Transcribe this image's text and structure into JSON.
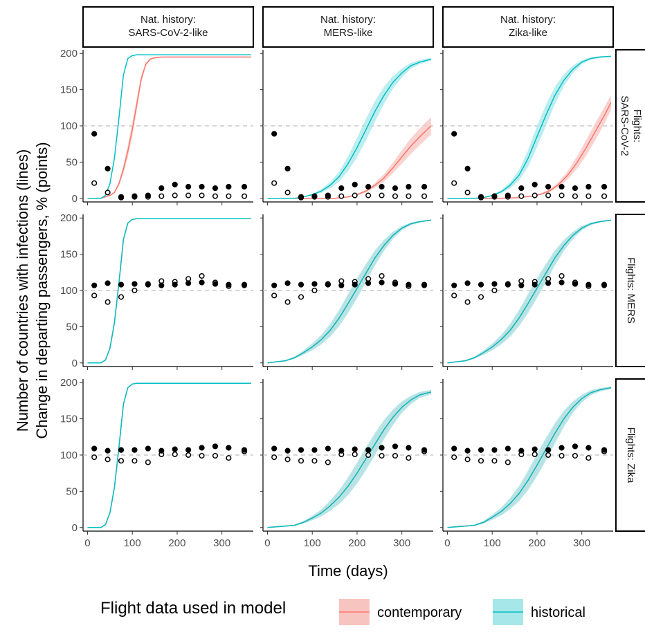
{
  "chart_data": {
    "type": "line",
    "layout": "faceted grid 3x3 (columns: natural history, rows: flight data scenario)",
    "col_strips": [
      "Nat. history:\nSARS-CoV-2-like",
      "Nat. history:\nMERS-like",
      "Nat. history:\nZika-like"
    ],
    "row_strips": [
      "Flights:\nSARS-CoV-2",
      "Flights: MERS",
      "Flights: Zika"
    ],
    "xlabel": "Time (days)",
    "ylabel": [
      "Number of countries with infections (lines)",
      "Change in departing passengers, % (points)"
    ],
    "xticks": [
      0,
      100,
      200,
      300
    ],
    "yticks": [
      0,
      50,
      100,
      150,
      200
    ],
    "xlim": [
      -10,
      370
    ],
    "ylim": [
      -5,
      205
    ],
    "reference_line_y": 100,
    "legend": {
      "title": "Flight data used in model",
      "position": "bottom",
      "entries": [
        {
          "label": "contemporary",
          "line_color": "#F8766D",
          "fill_color": "#F8C4C0"
        },
        {
          "label": "historical",
          "line_color": "#00BFC4",
          "fill_color": "#A6E7E9"
        }
      ]
    },
    "line_series": [
      {
        "flights": "SARS-CoV-2",
        "curves": [
          {
            "nat_history": "SARS-CoV-2-like",
            "contemporary": {
              "x": [
                0,
                30,
                50,
                60,
                70,
                80,
                90,
                100,
                110,
                120,
                130,
                140,
                150,
                165,
                200,
                365
              ],
              "y": [
                0,
                0,
                4,
                8,
                20,
                40,
                65,
                95,
                130,
                165,
                185,
                192,
                194,
                195,
                195,
                195
              ],
              "band": 10
            },
            "historical": {
              "x": [
                0,
                30,
                40,
                50,
                60,
                70,
                80,
                90,
                100,
                110,
                365
              ],
              "y": [
                0,
                0,
                4,
                20,
                55,
                110,
                170,
                193,
                197,
                198,
                198
              ],
              "band": 3
            }
          },
          {
            "nat_history": "MERS-like",
            "contemporary": {
              "x": [
                0,
                100,
                150,
                180,
                200,
                220,
                240,
                260,
                280,
                300,
                320,
                340,
                365
              ],
              "y": [
                0,
                0,
                0,
                2,
                5,
                10,
                18,
                28,
                42,
                57,
                72,
                85,
                100
              ],
              "band": 12
            },
            "historical": {
              "x": [
                0,
                60,
                80,
                100,
                120,
                140,
                160,
                180,
                200,
                220,
                240,
                260,
                280,
                300,
                320,
                340,
                365
              ],
              "y": [
                0,
                0,
                2,
                5,
                10,
                18,
                30,
                48,
                70,
                95,
                120,
                142,
                160,
                173,
                183,
                188,
                192
              ],
              "band": 15
            }
          },
          {
            "nat_history": "Zika-like",
            "contemporary": {
              "x": [
                0,
                120,
                160,
                190,
                210,
                230,
                250,
                270,
                290,
                310,
                330,
                350,
                365
              ],
              "y": [
                0,
                0,
                1,
                3,
                6,
                11,
                20,
                33,
                50,
                70,
                92,
                114,
                132
              ],
              "band": 12
            },
            "historical": {
              "x": [
                0,
                60,
                80,
                100,
                120,
                140,
                160,
                180,
                200,
                220,
                240,
                260,
                280,
                300,
                320,
                340,
                365
              ],
              "y": [
                0,
                0,
                1,
                4,
                9,
                18,
                32,
                55,
                85,
                115,
                142,
                163,
                178,
                188,
                193,
                195,
                196
              ],
              "band": 15
            }
          }
        ]
      },
      {
        "flights": "MERS",
        "curves": [
          {
            "nat_history": "SARS-CoV-2-like",
            "contemporary": {
              "x": [
                0,
                30,
                40,
                50,
                60,
                70,
                80,
                90,
                100,
                110,
                365
              ],
              "y": [
                0,
                0,
                4,
                20,
                55,
                110,
                170,
                193,
                198,
                199,
                199
              ],
              "band": 3
            },
            "historical": {
              "x": [
                0,
                30,
                40,
                50,
                60,
                70,
                80,
                90,
                100,
                110,
                365
              ],
              "y": [
                0,
                0,
                4,
                20,
                55,
                110,
                170,
                193,
                198,
                199,
                199
              ],
              "band": 3
            }
          },
          {
            "nat_history": "MERS-like",
            "contemporary": {
              "x": [
                0,
                40,
                60,
                80,
                100,
                120,
                140,
                160,
                180,
                200,
                220,
                240,
                260,
                280,
                300,
                320,
                340,
                365
              ],
              "y": [
                0,
                3,
                7,
                14,
                22,
                32,
                45,
                62,
                82,
                103,
                124,
                145,
                162,
                176,
                186,
                192,
                195,
                197
              ],
              "band": 12
            },
            "historical": {
              "x": [
                0,
                40,
                60,
                80,
                100,
                120,
                140,
                160,
                180,
                200,
                220,
                240,
                260,
                280,
                300,
                320,
                340,
                365
              ],
              "y": [
                0,
                3,
                7,
                14,
                22,
                32,
                45,
                62,
                82,
                103,
                124,
                145,
                162,
                176,
                186,
                192,
                195,
                197
              ],
              "band": 14
            }
          },
          {
            "nat_history": "Zika-like",
            "contemporary": {
              "x": [
                0,
                40,
                60,
                80,
                100,
                120,
                140,
                160,
                180,
                200,
                220,
                240,
                260,
                280,
                300,
                320,
                340,
                365
              ],
              "y": [
                0,
                3,
                7,
                14,
                22,
                32,
                45,
                62,
                82,
                103,
                124,
                145,
                162,
                176,
                186,
                192,
                195,
                197
              ],
              "band": 12
            },
            "historical": {
              "x": [
                0,
                40,
                60,
                80,
                100,
                120,
                140,
                160,
                180,
                200,
                220,
                240,
                260,
                280,
                300,
                320,
                340,
                365
              ],
              "y": [
                0,
                3,
                7,
                14,
                22,
                32,
                45,
                62,
                82,
                103,
                124,
                145,
                162,
                176,
                186,
                192,
                195,
                197
              ],
              "band": 14
            }
          }
        ]
      },
      {
        "flights": "Zika",
        "curves": [
          {
            "nat_history": "SARS-CoV-2-like",
            "contemporary": {
              "x": [
                0,
                30,
                40,
                50,
                60,
                70,
                80,
                90,
                100,
                110,
                365
              ],
              "y": [
                0,
                0,
                4,
                20,
                55,
                110,
                170,
                193,
                198,
                199,
                199
              ],
              "band": 3
            },
            "historical": {
              "x": [
                0,
                30,
                40,
                50,
                60,
                70,
                80,
                90,
                100,
                110,
                365
              ],
              "y": [
                0,
                0,
                4,
                20,
                55,
                110,
                170,
                193,
                198,
                199,
                199
              ],
              "band": 3
            }
          },
          {
            "nat_history": "MERS-like",
            "contemporary": {
              "x": [
                0,
                60,
                80,
                100,
                120,
                140,
                160,
                180,
                200,
                220,
                240,
                260,
                280,
                300,
                320,
                340,
                365
              ],
              "y": [
                0,
                3,
                7,
                13,
                20,
                30,
                42,
                57,
                75,
                95,
                115,
                135,
                152,
                166,
                176,
                183,
                187
              ],
              "band": 14
            },
            "historical": {
              "x": [
                0,
                60,
                80,
                100,
                120,
                140,
                160,
                180,
                200,
                220,
                240,
                260,
                280,
                300,
                320,
                340,
                365
              ],
              "y": [
                0,
                3,
                7,
                13,
                20,
                30,
                42,
                57,
                75,
                95,
                115,
                135,
                152,
                166,
                176,
                183,
                187
              ],
              "band": 16
            }
          },
          {
            "nat_history": "Zika-like",
            "contemporary": {
              "x": [
                0,
                60,
                80,
                100,
                120,
                140,
                160,
                180,
                200,
                220,
                240,
                260,
                280,
                300,
                320,
                340,
                365
              ],
              "y": [
                0,
                3,
                7,
                14,
                22,
                33,
                47,
                65,
                86,
                108,
                130,
                150,
                166,
                178,
                186,
                190,
                193
              ],
              "band": 14
            },
            "historical": {
              "x": [
                0,
                60,
                80,
                100,
                120,
                140,
                160,
                180,
                200,
                220,
                240,
                260,
                280,
                300,
                320,
                340,
                365
              ],
              "y": [
                0,
                3,
                7,
                14,
                22,
                33,
                47,
                65,
                86,
                108,
                130,
                150,
                166,
                178,
                186,
                190,
                193
              ],
              "band": 16
            }
          }
        ]
      }
    ],
    "point_series": {
      "x": [
        15,
        45,
        75,
        105,
        135,
        165,
        195,
        225,
        255,
        285,
        315,
        350
      ],
      "rows": [
        {
          "flights": "SARS-CoV-2",
          "contemporary_filled": [
            89,
            41,
            2,
            3,
            4,
            14,
            19,
            16,
            16,
            14,
            16,
            16
          ],
          "historical_open": [
            21,
            8,
            1,
            2,
            2,
            3,
            4,
            4,
            4,
            3,
            3,
            3
          ]
        },
        {
          "flights": "MERS",
          "contemporary_filled": [
            107,
            110,
            108,
            109,
            108,
            107,
            108,
            110,
            111,
            109,
            108,
            108
          ],
          "historical_open": [
            93,
            84,
            91,
            100,
            109,
            113,
            112,
            116,
            120,
            111,
            106,
            107
          ]
        },
        {
          "flights": "Zika",
          "contemporary_filled": [
            109,
            106,
            107,
            107,
            109,
            106,
            108,
            107,
            110,
            112,
            110,
            107
          ],
          "historical_open": [
            97,
            94,
            92,
            92,
            90,
            101,
            101,
            100,
            99,
            99,
            96,
            105
          ]
        }
      ]
    }
  }
}
